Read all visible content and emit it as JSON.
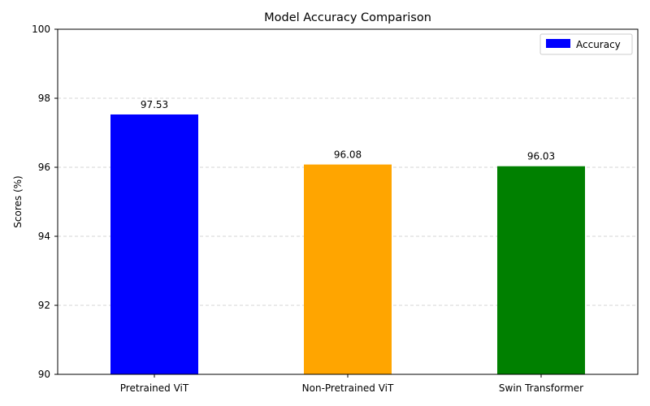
{
  "chart_data": {
    "type": "bar",
    "title": "Model Accuracy Comparison",
    "xlabel": "",
    "ylabel": "Scores (%)",
    "categories": [
      "Pretrained ViT",
      "Non-Pretrained ViT",
      "Swin Transformer"
    ],
    "series": [
      {
        "name": "Accuracy",
        "values": [
          97.53,
          96.08,
          96.03
        ],
        "colors": [
          "#0000ff",
          "#ffa500",
          "#008000"
        ]
      }
    ],
    "data_labels": [
      "97.53",
      "96.08",
      "96.03"
    ],
    "ylim": [
      90,
      100
    ],
    "yticks": [
      90,
      92,
      94,
      96,
      98,
      100
    ],
    "ytick_labels": [
      "90",
      "92",
      "94",
      "96",
      "98",
      "100"
    ],
    "legend_color": "#0000ff",
    "grid": "y-dashed",
    "legend_position": "top-right"
  }
}
